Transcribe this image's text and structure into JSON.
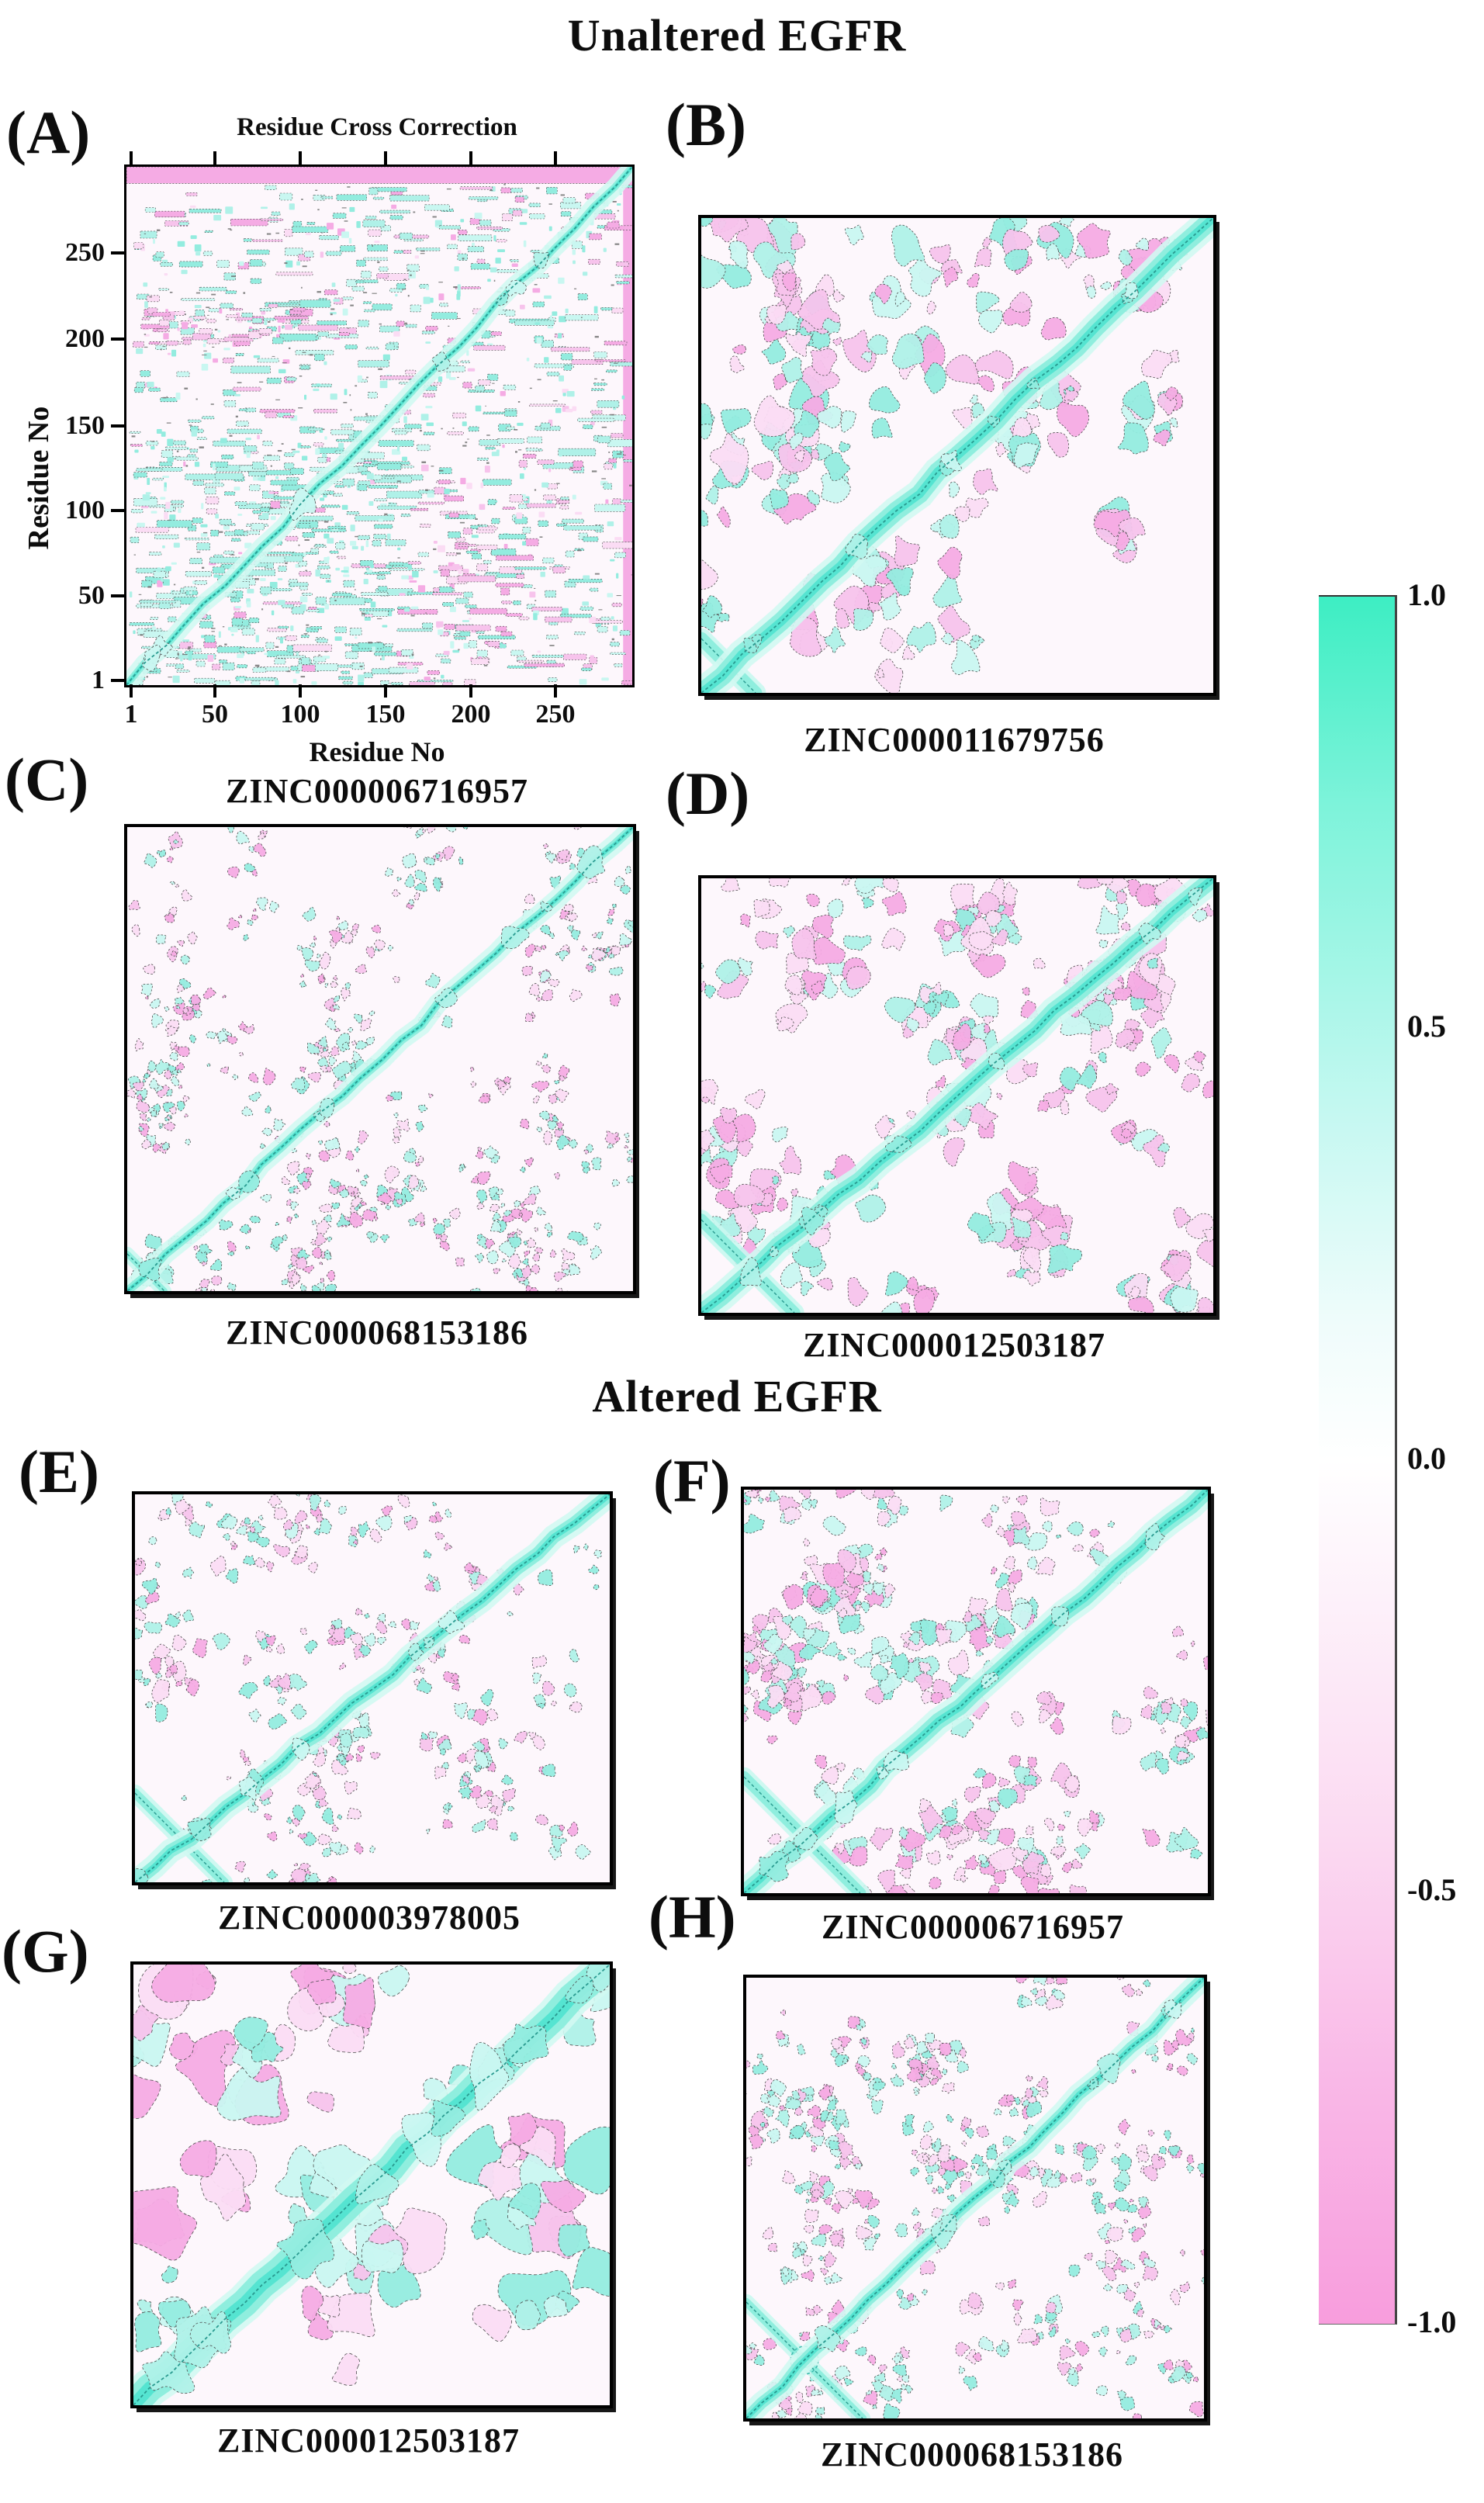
{
  "figure": {
    "section1_title": "Unaltered EGFR",
    "section2_title": "Altered EGFR"
  },
  "colorbar": {
    "ticks": [
      "1.0",
      "0.5",
      "0.0",
      "-0.5",
      "-1.0"
    ],
    "range": [
      -1.0,
      1.0
    ],
    "top_color": "#3deec3",
    "mid_color": "#ffffff",
    "bottom_color": "#f89ddd",
    "gradient": [
      [
        0,
        "#3deec3"
      ],
      [
        12,
        "#7df3da"
      ],
      [
        30,
        "#c5f8f1"
      ],
      [
        42,
        "#effcfb"
      ],
      [
        50,
        "#ffffff"
      ],
      [
        58,
        "#fdf1fa"
      ],
      [
        72,
        "#fbd9f1"
      ],
      [
        86,
        "#f9b8e7"
      ],
      [
        100,
        "#f89ddd"
      ]
    ]
  },
  "panels": {
    "A": {
      "letter": "(A)",
      "plot_title": "Residue Cross Correction",
      "xlabel": "Residue No",
      "ylabel": "Residue No",
      "x_ticks": [
        "1",
        "50",
        "100",
        "150",
        "200",
        "250"
      ],
      "y_ticks": [
        "250",
        "200",
        "150",
        "100",
        "50",
        "1"
      ],
      "caption": "ZINC000006716957"
    },
    "B": {
      "letter": "(B)",
      "caption": "ZINC000011679756"
    },
    "C": {
      "letter": "(C)",
      "caption": "ZINC000068153186"
    },
    "D": {
      "letter": "(D)",
      "caption": "ZINC000012503187"
    },
    "E": {
      "letter": "(E)",
      "caption": "ZINC000003978005"
    },
    "F": {
      "letter": "(F)",
      "caption": "ZINC000006716957"
    },
    "G": {
      "letter": "(G)",
      "caption": "ZINC000012503187"
    },
    "H": {
      "letter": "(H)",
      "caption": "ZINC000068153186"
    }
  },
  "chart_data": [
    {
      "id": "A",
      "type": "heatmap",
      "group": "Unaltered EGFR",
      "title": "Residue Cross Correction",
      "ligand": "ZINC000006716957",
      "xlabel": "Residue No",
      "ylabel": "Residue No",
      "x_ticks": [
        1,
        50,
        100,
        150,
        200,
        250
      ],
      "y_ticks": [
        1,
        50,
        100,
        150,
        200,
        250
      ],
      "x_range": [
        1,
        295
      ],
      "y_range": [
        1,
        295
      ],
      "value_range": [
        -1,
        1
      ],
      "diagonal_value": 1.0,
      "pattern": "dense positive (cyan) correlation blocks among residues ~1-150; anticorrelated (pink) strip along top edge (residues ~285-295) and right edge; pink patches near residues 195-215 vs 1-80; strong cyan identity diagonal"
    },
    {
      "id": "B",
      "type": "heatmap",
      "group": "Unaltered EGFR",
      "ligand": "ZINC000011679756",
      "x_range": [
        1,
        295
      ],
      "y_range": [
        1,
        295
      ],
      "value_range": [
        -1,
        1
      ],
      "diagonal_value": 1.0,
      "pattern": "scattered medium pink and cyan patches; prominent cyan diagonal band; small cyan anti-diagonal cross near residues 1-40"
    },
    {
      "id": "C",
      "type": "heatmap",
      "group": "Unaltered EGFR",
      "ligand": "ZINC000068153186",
      "x_range": [
        1,
        295
      ],
      "y_range": [
        1,
        295
      ],
      "value_range": [
        -1,
        1
      ],
      "diagonal_value": 1.0,
      "pattern": "fine speckled weak correlations of both signs; thin cyan diagonal; small cyan patch at lower-left corner and mid-diagonal"
    },
    {
      "id": "D",
      "type": "heatmap",
      "group": "Unaltered EGFR",
      "ligand": "ZINC000012503187",
      "x_range": [
        1,
        295
      ],
      "y_range": [
        1,
        295
      ],
      "value_range": [
        -1,
        1
      ],
      "diagonal_value": 1.0,
      "pattern": "denser mixed patches with more anticorrelation (pink), pink blob row along top edge; cyan diagonal with cross motif near residues 20-70"
    },
    {
      "id": "E",
      "type": "heatmap",
      "group": "Altered EGFR",
      "ligand": "ZINC000003978005",
      "x_range": [
        1,
        295
      ],
      "y_range": [
        1,
        295
      ],
      "value_range": [
        -1,
        1
      ],
      "diagonal_value": 1.0,
      "pattern": "sparse fine speckle; cyan X cross near residues 1-55; pink cluster around residues 140-170 vs 1-60; thin cyan diagonal"
    },
    {
      "id": "F",
      "type": "heatmap",
      "group": "Altered EGFR",
      "ligand": "ZINC000006716957",
      "x_range": [
        1,
        295
      ],
      "y_range": [
        1,
        295
      ],
      "value_range": [
        -1,
        1
      ],
      "diagonal_value": 1.0,
      "pattern": "medium-density patches; larger cyan X cross near residues 1-70; pink patches along bottom rows and left middle; cyan diagonal band"
    },
    {
      "id": "G",
      "type": "heatmap",
      "group": "Altered EGFR",
      "ligand": "ZINC000012503187",
      "x_range": [
        1,
        295
      ],
      "y_range": [
        1,
        295
      ],
      "value_range": [
        -1,
        1
      ],
      "diagonal_value": 1.0,
      "pattern": "large smooth contour blobs; broad cyan diagonal band; big pink anticorrelated regions at left-middle, bottom-center, top-middle and right-middle; scattered large cyan patches"
    },
    {
      "id": "H",
      "type": "heatmap",
      "group": "Altered EGFR",
      "ligand": "ZINC000068153186",
      "x_range": [
        1,
        295
      ],
      "y_range": [
        1,
        295
      ],
      "value_range": [
        -1,
        1
      ],
      "diagonal_value": 1.0,
      "pattern": "fine speckle of both signs; concentric cyan X cross near residues 1-55; thin cyan diagonal"
    }
  ]
}
